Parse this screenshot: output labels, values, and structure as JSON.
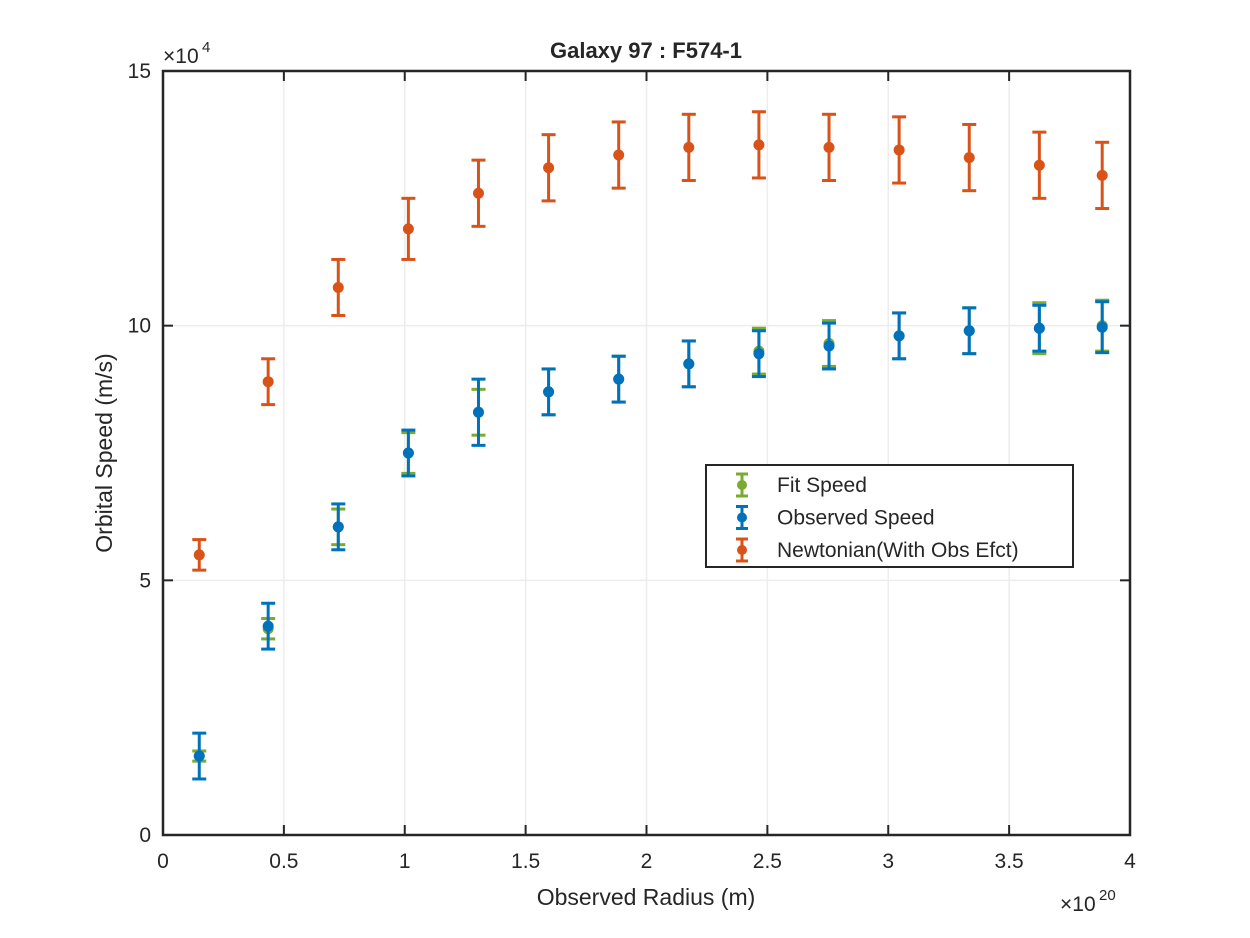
{
  "chart_data": {
    "type": "scatter",
    "title": "Galaxy 97 : F574-1",
    "xlabel": "Observed Radius (m)",
    "ylabel": "Orbital Speed (m/s)",
    "x_exponent": {
      "base": "×10",
      "power": "20"
    },
    "y_exponent": {
      "base": "×10",
      "power": "4"
    },
    "xlim": [
      0,
      4
    ],
    "ylim": [
      0,
      15
    ],
    "x_ticks": [
      0,
      0.5,
      1,
      1.5,
      2,
      2.5,
      3,
      3.5,
      4
    ],
    "x_tick_labels": [
      "0",
      "0.5",
      "1",
      "1.5",
      "2",
      "2.5",
      "3",
      "3.5",
      "4"
    ],
    "y_ticks": [
      0,
      5,
      10,
      15
    ],
    "y_tick_labels": [
      "0",
      "5",
      "10",
      "15"
    ],
    "grid": true,
    "legend_position": "center-right",
    "x": [
      0.15,
      0.435,
      0.725,
      1.015,
      1.305,
      1.595,
      1.885,
      2.175,
      2.465,
      2.755,
      3.045,
      3.335,
      3.625,
      3.885
    ],
    "series": [
      {
        "name": "Fit Speed",
        "color": "#77ac30",
        "y": [
          1.55,
          4.05,
          6.05,
          7.5,
          8.3,
          8.7,
          8.95,
          9.25,
          9.5,
          9.65,
          9.8,
          9.9,
          9.95,
          10.0
        ],
        "err": [
          0.1,
          0.2,
          0.35,
          0.4,
          0.45,
          0.45,
          0.45,
          0.45,
          0.45,
          0.45,
          0.45,
          0.45,
          0.5,
          0.5
        ]
      },
      {
        "name": "Observed Speed",
        "color": "#0072bd",
        "y": [
          1.55,
          4.1,
          6.05,
          7.5,
          8.3,
          8.7,
          8.95,
          9.25,
          9.45,
          9.6,
          9.8,
          9.9,
          9.95,
          9.97
        ],
        "err": [
          0.45,
          0.45,
          0.45,
          0.45,
          0.65,
          0.45,
          0.45,
          0.45,
          0.45,
          0.45,
          0.45,
          0.45,
          0.45,
          0.5
        ]
      },
      {
        "name": "Newtonian(With Obs Efct)",
        "color": "#d95319",
        "y": [
          5.5,
          8.9,
          10.75,
          11.9,
          12.6,
          13.1,
          13.35,
          13.5,
          13.55,
          13.5,
          13.45,
          13.3,
          13.15,
          12.95
        ],
        "err": [
          0.3,
          0.45,
          0.55,
          0.6,
          0.65,
          0.65,
          0.65,
          0.65,
          0.65,
          0.65,
          0.65,
          0.65,
          0.65,
          0.65
        ]
      }
    ]
  }
}
